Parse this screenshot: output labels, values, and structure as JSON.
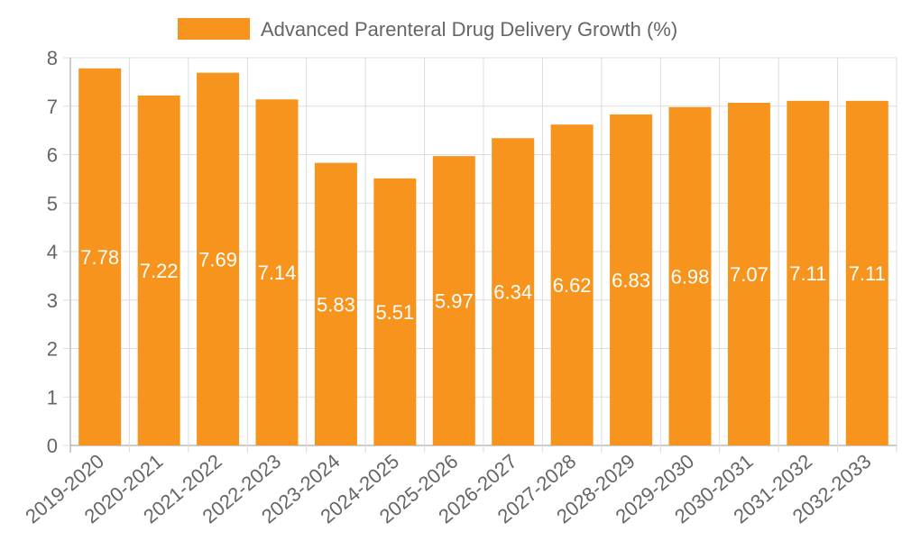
{
  "chart_data": {
    "type": "bar",
    "categories": [
      "2019-2020",
      "2020-2021",
      "2021-2022",
      "2022-2023",
      "2023-2024",
      "2024-2025",
      "2025-2026",
      "2026-2027",
      "2027-2028",
      "2028-2029",
      "2029-2030",
      "2030-2031",
      "2031-2032",
      "2032-2033"
    ],
    "series": [
      {
        "name": "Advanced Parenteral Drug Delivery Growth (%)",
        "values": [
          7.78,
          7.22,
          7.69,
          7.14,
          5.83,
          5.51,
          5.97,
          6.34,
          6.62,
          6.83,
          6.98,
          7.07,
          7.11,
          7.11
        ],
        "color": "#f7941d"
      }
    ],
    "data_labels": [
      "7.78",
      "7.22",
      "7.69",
      "7.14",
      "5.83",
      "5.51",
      "5.97",
      "6.34",
      "6.62",
      "6.83",
      "6.98",
      "7.07",
      "7.11",
      "7.11"
    ],
    "y_ticks": [
      "0",
      "1",
      "2",
      "3",
      "4",
      "5",
      "6",
      "7",
      "8"
    ],
    "ylim": [
      0,
      8
    ],
    "grid": true,
    "legend_position": "top",
    "grid_color": "#dddddd",
    "axis_color": "#999999"
  }
}
